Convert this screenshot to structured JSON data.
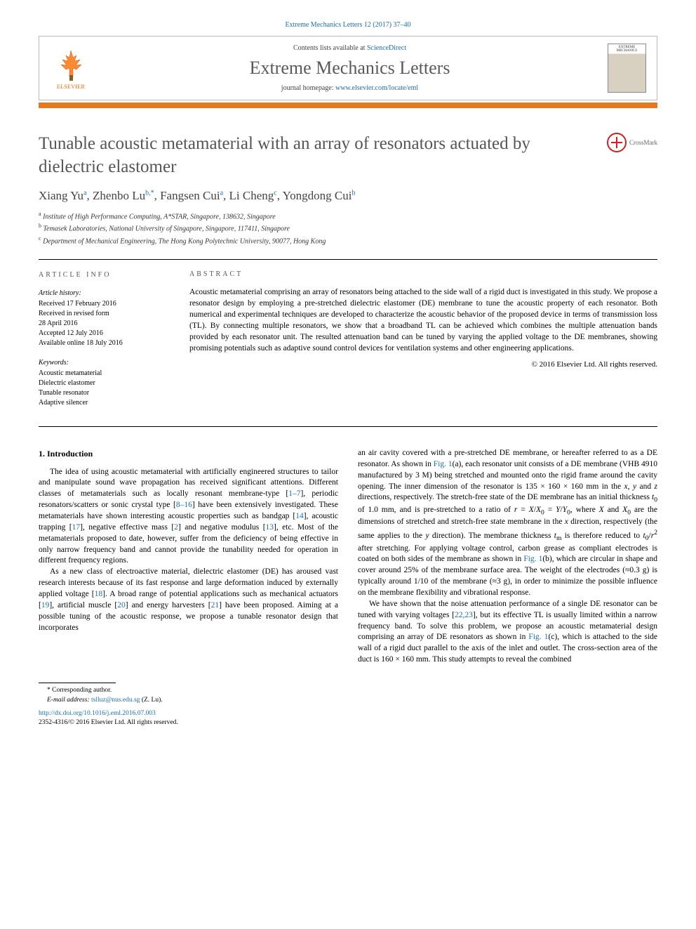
{
  "journal_ref": "Extreme Mechanics Letters 12 (2017) 37–40",
  "header": {
    "contents_prefix": "Contents lists available at ",
    "contents_link": "ScienceDirect",
    "journal_name": "Extreme Mechanics Letters",
    "homepage_prefix": "journal homepage: ",
    "homepage_link": "www.elsevier.com/locate/eml",
    "publisher": "ELSEVIER",
    "cover_label": "EXTREME MECHANICS"
  },
  "title": "Tunable acoustic metamaterial with an array of resonators actuated by dielectric elastomer",
  "crossmark": "CrossMark",
  "authors_html": "Xiang Yu<sup>a</sup>, Zhenbo Lu<sup>b,*</sup>, Fangsen Cui<sup>a</sup>, Li Cheng<sup>c</sup>, Yongdong Cui<sup>b</sup>",
  "affiliations": [
    "a Institute of High Performance Computing, A*STAR, Singapore, 138632, Singapore",
    "b Temasek Laboratories, National University of Singapore, Singapore, 117411, Singapore",
    "c Department of Mechanical Engineering, The Hong Kong Polytechnic University, 90077, Hong Kong"
  ],
  "article_info": {
    "header": "ARTICLE INFO",
    "history_label": "Article history:",
    "history": [
      "Received 17 February 2016",
      "Received in revised form",
      "28 April 2016",
      "Accepted 12 July 2016",
      "Available online 18 July 2016"
    ],
    "keywords_label": "Keywords:",
    "keywords": [
      "Acoustic metamaterial",
      "Dielectric elastomer",
      "Tunable resonator",
      "Adaptive silencer"
    ]
  },
  "abstract": {
    "header": "ABSTRACT",
    "text": "Acoustic metamaterial comprising an array of resonators being attached to the side wall of a rigid duct is investigated in this study. We propose a resonator design by employing a pre-stretched dielectric elastomer (DE) membrane to tune the acoustic property of each resonator. Both numerical and experimental techniques are developed to characterize the acoustic behavior of the proposed device in terms of transmission loss (TL). By connecting multiple resonators, we show that a broadband TL can be achieved which combines the multiple attenuation bands provided by each resonator unit. The resulted attenuation band can be tuned by varying the applied voltage to the DE membranes, showing promising potentials such as adaptive sound control devices for ventilation systems and other engineering applications.",
    "copyright": "© 2016 Elsevier Ltd. All rights reserved."
  },
  "body": {
    "section_heading": "1. Introduction",
    "col1_p1": "The idea of using acoustic metamaterial with artificially engineered structures to tailor and manipulate sound wave propagation has received significant attentions. Different classes of metamaterials such as locally resonant membrane-type [1–7], periodic resonators/scatters or sonic crystal type [8–16] have been extensively investigated. These metamaterials have shown interesting acoustic properties such as bandgap [14], acoustic trapping [17], negative effective mass [2] and negative modulus [13], etc. Most of the metamaterials proposed to date, however, suffer from the deficiency of being effective in only narrow frequency band and cannot provide the tunability needed for operation in different frequency regions.",
    "col1_p2": "As a new class of electroactive material, dielectric elastomer (DE) has aroused vast research interests because of its fast response and large deformation induced by externally applied voltage [18]. A broad range of potential applications such as mechanical actuators [19], artificial muscle [20] and energy harvesters [21] have been proposed. Aiming at a possible tuning of the acoustic response, we propose a tunable resonator design that incorporates",
    "col2_p1": "an air cavity covered with a pre-stretched DE membrane, or hereafter referred to as a DE resonator. As shown in Fig. 1(a), each resonator unit consists of a DE membrane (VHB 4910 manufactured by 3 M) being stretched and mounted onto the rigid frame around the cavity opening. The inner dimension of the resonator is 135 × 160 × 160 mm in the x, y and z directions, respectively. The stretch-free state of the DE membrane has an initial thickness t₀ of 1.0 mm, and is pre-stretched to a ratio of r = X/X₀ = Y/Y₀, where X and X₀ are the dimensions of stretched and stretch-free state membrane in the x direction, respectively (the same applies to the y direction). The membrane thickness tₘ is therefore reduced to t₀/r² after stretching. For applying voltage control, carbon grease as compliant electrodes is coated on both sides of the membrane as shown in Fig. 1(b), which are circular in shape and cover around 25% of the membrane surface area. The weight of the electrodes (≈0.3 g) is typically around 1/10 of the membrane (≈3 g), in order to minimize the possible influence on the membrane flexibility and vibrational response.",
    "col2_p2": "We have shown that the noise attenuation performance of a single DE resonator can be tuned with varying voltages [22,23], but its effective TL is usually limited within a narrow frequency band. To solve this problem, we propose an acoustic metamaterial design comprising an array of DE resonators as shown in Fig. 1(c), which is attached to the side wall of a rigid duct parallel to the axis of the inlet and outlet. The cross-section area of the duct is 160 × 160 mm. This study attempts to reveal the combined"
  },
  "footnote": {
    "corr_label": "* Corresponding author.",
    "email_label": "E-mail address:",
    "email": "tslluz@nus.edu.sg",
    "email_suffix": "(Z. Lu).",
    "doi": "http://dx.doi.org/10.1016/j.eml.2016.07.003",
    "issn_line": "2352-4316/© 2016 Elsevier Ltd. All rights reserved."
  },
  "colors": {
    "link": "#1a6eb8",
    "orange_bar": "#e87722",
    "title_gray": "#555555"
  }
}
